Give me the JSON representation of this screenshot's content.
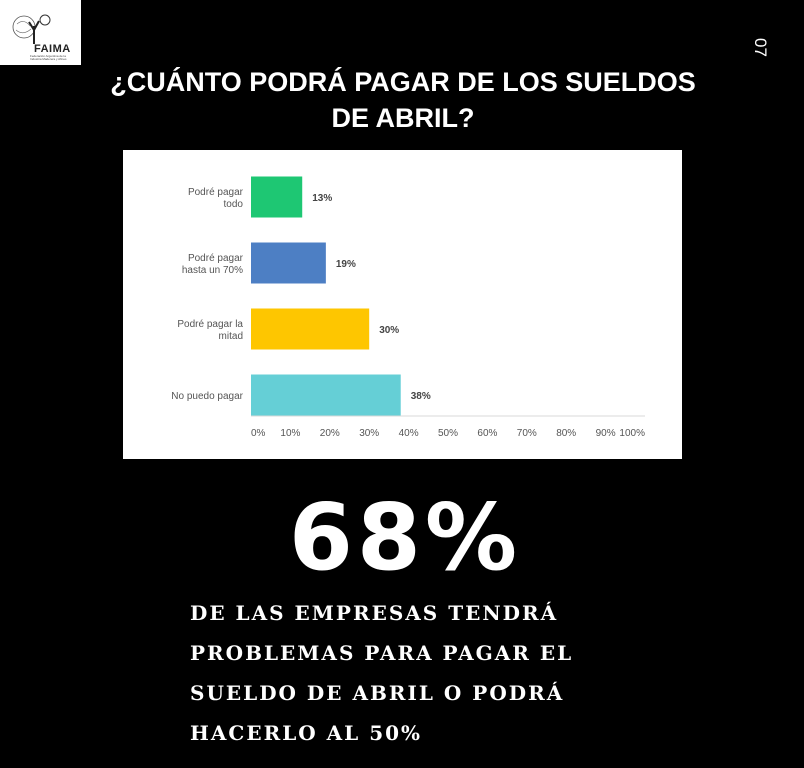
{
  "logo": {
    "name": "FAIMA",
    "tagline": "Federación Argentina de la Industria Maderera y Afines"
  },
  "page_number": "07",
  "title_lines": [
    "¿CUÁNTO PODRÁ PAGAR DE LOS SUELDOS",
    "DE ABRIL?"
  ],
  "chart_data": {
    "type": "bar",
    "orientation": "horizontal",
    "categories": [
      [
        "Podré pagar",
        "todo"
      ],
      [
        "Podré pagar",
        "hasta un 70%"
      ],
      [
        "Podré pagar la",
        "mitad"
      ],
      [
        "No puedo pagar"
      ]
    ],
    "values": [
      13,
      19,
      30,
      38
    ],
    "value_labels": [
      "13%",
      "19%",
      "30%",
      "38%"
    ],
    "colors": [
      "#1ec773",
      "#4d7fc4",
      "#fec600",
      "#65cfd6"
    ],
    "xlim": [
      0,
      100
    ],
    "x_ticks": [
      0,
      10,
      20,
      30,
      40,
      50,
      60,
      70,
      80,
      90,
      100
    ],
    "x_tick_labels": [
      "0%",
      "10%",
      "20%",
      "30%",
      "40%",
      "50%",
      "60%",
      "70%",
      "80%",
      "90%",
      "100%"
    ],
    "grid": false
  },
  "highlight": {
    "value": "68%",
    "description_lines": [
      "DE LAS EMPRESAS TENDRÁ",
      "PROBLEMAS PARA PAGAR EL",
      "SUELDO DE ABRIL O PODRÁ",
      "HACERLO AL 50%"
    ]
  }
}
